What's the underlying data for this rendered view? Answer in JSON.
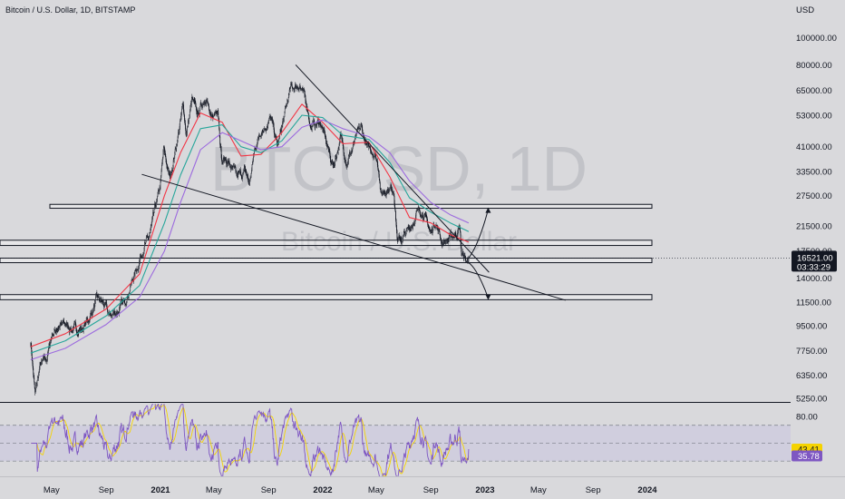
{
  "header": {
    "title": "Bitcoin / U.S. Dollar, 1D, BITSTAMP",
    "currency": "USD"
  },
  "watermark": {
    "symbol": "BTCUSD, 1D",
    "name": "Bitcoin / U.S. Dollar"
  },
  "colors": {
    "candle": "#131722",
    "ema_fast": "#f23645",
    "ema_mid": "#26a69a",
    "ema_slow": "#9c6ade",
    "rsi_line": "#7e57c2",
    "rsi_ma": "#f5d300",
    "rsi_band": "#c9c6e0",
    "price_label_bg": "#131722",
    "rsi_label_bg": "#f5d300",
    "rsi_ma_label_bg": "#7e57c2"
  },
  "chart_data": [
    {
      "type": "candlestick",
      "scale": "log",
      "x_ticks": [
        {
          "label": "May",
          "date": "2020-05",
          "bold": false
        },
        {
          "label": "Sep",
          "date": "2020-09",
          "bold": false
        },
        {
          "label": "2021",
          "date": "2021-01",
          "bold": true
        },
        {
          "label": "May",
          "date": "2021-05",
          "bold": false
        },
        {
          "label": "Sep",
          "date": "2021-09",
          "bold": false
        },
        {
          "label": "2022",
          "date": "2022-01",
          "bold": true
        },
        {
          "label": "May",
          "date": "2022-05",
          "bold": false
        },
        {
          "label": "Sep",
          "date": "2022-09",
          "bold": false
        },
        {
          "label": "2023",
          "date": "2023-01",
          "bold": true
        },
        {
          "label": "May",
          "date": "2023-05",
          "bold": false
        },
        {
          "label": "Sep",
          "date": "2023-09",
          "bold": false
        },
        {
          "label": "2024",
          "date": "2024-01",
          "bold": true
        }
      ],
      "y_ticks": [
        {
          "label": "100000.00",
          "value": 100000
        },
        {
          "label": "80000.00",
          "value": 80000
        },
        {
          "label": "65000.00",
          "value": 65000
        },
        {
          "label": "53000.00",
          "value": 53000
        },
        {
          "label": "41000.00",
          "value": 41000
        },
        {
          "label": "33500.00",
          "value": 33500
        },
        {
          "label": "27500.00",
          "value": 27500
        },
        {
          "label": "21500.00",
          "value": 21500
        },
        {
          "label": "17500.00",
          "value": 17500
        },
        {
          "label": "14000.00",
          "value": 14000
        },
        {
          "label": "11500.00",
          "value": 11500
        },
        {
          "label": "9500.00",
          "value": 9500
        },
        {
          "label": "7750.00",
          "value": 7750
        },
        {
          "label": "6350.00",
          "value": 6350
        },
        {
          "label": "5250.00",
          "value": 5250
        }
      ],
      "ylim": [
        5100,
        128000
      ],
      "price_path": [
        [
          "2020-03-15",
          8400
        ],
        [
          "2020-03-25",
          5400
        ],
        [
          "2020-04-05",
          6800
        ],
        [
          "2020-04-20",
          7200
        ],
        [
          "2020-05-01",
          8800
        ],
        [
          "2020-05-12",
          9300
        ],
        [
          "2020-06-01",
          9600
        ],
        [
          "2020-06-20",
          9200
        ],
        [
          "2020-07-10",
          9300
        ],
        [
          "2020-07-25",
          10100
        ],
        [
          "2020-08-10",
          11700
        ],
        [
          "2020-08-25",
          11400
        ],
        [
          "2020-09-08",
          10200
        ],
        [
          "2020-09-25",
          10700
        ],
        [
          "2020-10-10",
          11300
        ],
        [
          "2020-10-25",
          13200
        ],
        [
          "2020-11-10",
          15400
        ],
        [
          "2020-11-25",
          18500
        ],
        [
          "2020-12-05",
          19100
        ],
        [
          "2020-12-17",
          23000
        ],
        [
          "2020-12-31",
          29000
        ],
        [
          "2021-01-08",
          39500
        ],
        [
          "2021-01-22",
          31500
        ],
        [
          "2021-02-08",
          44000
        ],
        [
          "2021-02-21",
          57000
        ],
        [
          "2021-02-28",
          45500
        ],
        [
          "2021-03-13",
          60000
        ],
        [
          "2021-03-25",
          52500
        ],
        [
          "2021-04-14",
          63500
        ],
        [
          "2021-04-25",
          49500
        ],
        [
          "2021-05-10",
          57500
        ],
        [
          "2021-05-19",
          37000
        ],
        [
          "2021-06-01",
          36500
        ],
        [
          "2021-06-22",
          31500
        ],
        [
          "2021-07-10",
          33500
        ],
        [
          "2021-07-20",
          30000
        ],
        [
          "2021-08-01",
          40000
        ],
        [
          "2021-08-14",
          47000
        ],
        [
          "2021-09-06",
          51500
        ],
        [
          "2021-09-21",
          41000
        ],
        [
          "2021-10-05",
          51000
        ],
        [
          "2021-10-20",
          65000
        ],
        [
          "2021-11-10",
          68500
        ],
        [
          "2021-11-28",
          56000
        ],
        [
          "2021-12-05",
          48500
        ],
        [
          "2021-12-27",
          50000
        ],
        [
          "2022-01-10",
          41500
        ],
        [
          "2022-01-24",
          35000
        ],
        [
          "2022-02-10",
          44000
        ],
        [
          "2022-02-24",
          36500
        ],
        [
          "2022-03-28",
          47500
        ],
        [
          "2022-04-12",
          40000
        ],
        [
          "2022-04-28",
          39500
        ],
        [
          "2022-05-07",
          34500
        ],
        [
          "2022-05-12",
          28000
        ],
        [
          "2022-05-28",
          29500
        ],
        [
          "2022-06-10",
          29000
        ],
        [
          "2022-06-18",
          18900
        ],
        [
          "2022-07-01",
          19500
        ],
        [
          "2022-07-15",
          20800
        ],
        [
          "2022-07-30",
          23700
        ],
        [
          "2022-08-14",
          24400
        ],
        [
          "2022-09-01",
          20000
        ],
        [
          "2022-09-12",
          22500
        ],
        [
          "2022-09-25",
          19000
        ],
        [
          "2022-10-15",
          19200
        ],
        [
          "2022-11-05",
          21200
        ],
        [
          "2022-11-09",
          17000
        ],
        [
          "2022-11-14",
          16800
        ],
        [
          "2022-11-21",
          15800
        ],
        [
          "2022-11-25",
          16521
        ]
      ],
      "moving_averages": [
        {
          "color": "#f23645",
          "path": [
            [
              "2020-03-15",
              8000
            ],
            [
              "2020-06-01",
              8900
            ],
            [
              "2020-09-01",
              10900
            ],
            [
              "2020-11-15",
              14500
            ],
            [
              "2021-01-10",
              27500
            ],
            [
              "2021-02-15",
              39000
            ],
            [
              "2021-04-01",
              54000
            ],
            [
              "2021-05-20",
              50000
            ],
            [
              "2021-07-01",
              38000
            ],
            [
              "2021-08-15",
              38500
            ],
            [
              "2021-10-01",
              46000
            ],
            [
              "2021-11-15",
              58000
            ],
            [
              "2022-01-01",
              50000
            ],
            [
              "2022-02-15",
              42000
            ],
            [
              "2022-04-15",
              42500
            ],
            [
              "2022-06-01",
              32000
            ],
            [
              "2022-07-15",
              23000
            ],
            [
              "2022-09-01",
              22000
            ],
            [
              "2022-10-15",
              20000
            ],
            [
              "2022-11-25",
              18800
            ]
          ]
        },
        {
          "color": "#26a69a",
          "path": [
            [
              "2020-03-15",
              7600
            ],
            [
              "2020-06-01",
              8400
            ],
            [
              "2020-09-01",
              10300
            ],
            [
              "2020-11-15",
              13200
            ],
            [
              "2021-01-10",
              22000
            ],
            [
              "2021-02-15",
              32500
            ],
            [
              "2021-04-01",
              47500
            ],
            [
              "2021-05-20",
              49000
            ],
            [
              "2021-07-01",
              41000
            ],
            [
              "2021-08-15",
              39000
            ],
            [
              "2021-10-01",
              43000
            ],
            [
              "2021-11-15",
              53000
            ],
            [
              "2022-01-01",
              52000
            ],
            [
              "2022-02-15",
              45000
            ],
            [
              "2022-04-15",
              43500
            ],
            [
              "2022-06-01",
              36000
            ],
            [
              "2022-07-15",
              27000
            ],
            [
              "2022-09-01",
              24000
            ],
            [
              "2022-10-15",
              22000
            ],
            [
              "2022-11-25",
              20500
            ]
          ]
        },
        {
          "color": "#9c6ade",
          "path": [
            [
              "2020-03-15",
              7200
            ],
            [
              "2020-06-01",
              7900
            ],
            [
              "2020-09-01",
              9600
            ],
            [
              "2020-11-15",
              12000
            ],
            [
              "2021-01-10",
              17500
            ],
            [
              "2021-02-15",
              26000
            ],
            [
              "2021-04-01",
              40000
            ],
            [
              "2021-05-20",
              46000
            ],
            [
              "2021-07-01",
              43000
            ],
            [
              "2021-08-15",
              40000
            ],
            [
              "2021-10-01",
              41000
            ],
            [
              "2021-11-15",
              48000
            ],
            [
              "2022-01-01",
              51000
            ],
            [
              "2022-02-15",
              47500
            ],
            [
              "2022-04-15",
              44500
            ],
            [
              "2022-06-01",
              39000
            ],
            [
              "2022-07-15",
              31000
            ],
            [
              "2022-09-01",
              26000
            ],
            [
              "2022-10-15",
              23500
            ],
            [
              "2022-11-25",
              22000
            ]
          ]
        }
      ],
      "support_resistance_zones": [
        {
          "low": 24800,
          "high": 25600
        },
        {
          "low": 18300,
          "high": 19100
        },
        {
          "low": 15900,
          "high": 16500
        },
        {
          "low": 11750,
          "high": 12250
        }
      ],
      "trendlines": [
        {
          "from": [
            "2020-11-20",
            32700
          ],
          "to": [
            "2023-07-01",
            11700
          ]
        },
        {
          "from": [
            "2021-11-01",
            80000
          ],
          "to": [
            "2023-01-10",
            14700
          ]
        }
      ],
      "projection_paths": [
        {
          "points": [
            [
              "2022-11-22",
              16300
            ],
            [
              "2022-12-10",
              17500
            ],
            [
              "2022-12-28",
              21000
            ],
            [
              "2023-01-08",
              24600
            ]
          ]
        },
        {
          "points": [
            [
              "2022-11-22",
              16000
            ],
            [
              "2022-12-15",
              15400
            ],
            [
              "2023-01-08",
              11900
            ]
          ]
        }
      ],
      "current_price": {
        "label": "16521.00",
        "value": 16521,
        "countdown": "03:33:29"
      }
    },
    {
      "type": "line",
      "name": "RSI",
      "y_ticks": [
        {
          "label": "80.00",
          "value": 80
        }
      ],
      "band": [
        30,
        70
      ],
      "ylim": [
        15,
        92
      ],
      "rsi_value": {
        "label": "43.41",
        "value": 43.41
      },
      "rsi_ma_value": {
        "label": "35.78",
        "value": 35.78
      }
    }
  ]
}
